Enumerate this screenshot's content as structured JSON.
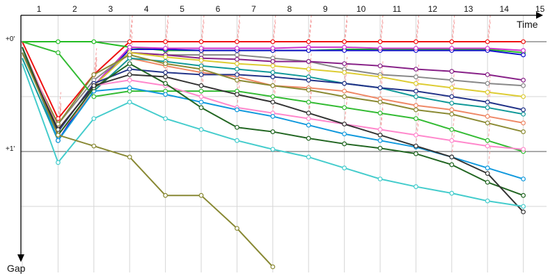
{
  "chart_data": {
    "type": "line",
    "xlabel": "Time",
    "ylabel": "Gap",
    "x_ticks": [
      "1",
      "2",
      "3",
      "4",
      "5",
      "6",
      "7",
      "8",
      "9",
      "10",
      "11",
      "12",
      "13",
      "14",
      "15"
    ],
    "y_ticks": [
      "+0'",
      "+1'"
    ],
    "ylim": [
      0,
      2.15
    ],
    "grid": true,
    "series": [
      {
        "color": "#ee1111",
        "values": [
          0.0,
          0.7,
          0.3,
          0.0,
          0.0,
          0.0,
          0.0,
          0.0,
          0.0,
          0.0,
          0.0,
          0.0,
          0.0,
          0.0,
          0.0
        ]
      },
      {
        "color": "#22bb22",
        "values": [
          0.0,
          0.0,
          0.0,
          0.05,
          0.08,
          0.08,
          0.08,
          0.08,
          0.08,
          0.07,
          0.07,
          0.07,
          0.07,
          0.07,
          0.1
        ]
      },
      {
        "color": "#1111cc",
        "values": [
          0.05,
          0.9,
          0.4,
          0.07,
          0.07,
          0.08,
          0.08,
          0.08,
          0.08,
          0.08,
          0.08,
          0.08,
          0.08,
          0.08,
          0.12
        ]
      },
      {
        "color": "#cc33cc",
        "values": [
          0.05,
          0.8,
          0.4,
          0.05,
          0.06,
          0.06,
          0.06,
          0.06,
          0.05,
          0.05,
          0.06,
          0.06,
          0.06,
          0.06,
          0.08
        ]
      },
      {
        "color": "#888888",
        "values": [
          0.1,
          0.75,
          0.35,
          0.1,
          0.12,
          0.12,
          0.12,
          0.15,
          0.18,
          0.25,
          0.3,
          0.32,
          0.35,
          0.38,
          0.4
        ]
      },
      {
        "color": "#882288",
        "values": [
          0.05,
          0.8,
          0.4,
          0.1,
          0.12,
          0.15,
          0.16,
          0.18,
          0.18,
          0.2,
          0.22,
          0.25,
          0.27,
          0.3,
          0.35
        ]
      },
      {
        "color": "#ee8866",
        "values": [
          0.05,
          0.85,
          0.45,
          0.15,
          0.22,
          0.28,
          0.32,
          0.4,
          0.42,
          0.45,
          0.52,
          0.58,
          0.62,
          0.68,
          0.74
        ]
      },
      {
        "color": "#ddcc33",
        "values": [
          0.1,
          0.8,
          0.4,
          0.1,
          0.14,
          0.17,
          0.2,
          0.22,
          0.25,
          0.28,
          0.32,
          0.38,
          0.42,
          0.46,
          0.5
        ]
      },
      {
        "color": "#119999",
        "values": [
          0.15,
          0.9,
          0.45,
          0.15,
          0.18,
          0.22,
          0.25,
          0.28,
          0.32,
          0.38,
          0.42,
          0.5,
          0.56,
          0.6,
          0.66
        ]
      },
      {
        "color": "#223388",
        "values": [
          0.1,
          0.82,
          0.38,
          0.25,
          0.28,
          0.3,
          0.3,
          0.32,
          0.35,
          0.38,
          0.42,
          0.45,
          0.5,
          0.55,
          0.62
        ]
      },
      {
        "color": "#8a8a33",
        "values": [
          0.1,
          0.75,
          0.3,
          0.12,
          0.2,
          0.25,
          0.35,
          0.4,
          0.44,
          0.5,
          0.55,
          0.62,
          0.66,
          0.74,
          0.82
        ]
      },
      {
        "color": "#33bb33",
        "values": [
          0.0,
          0.1,
          0.5,
          0.45,
          0.45,
          0.45,
          0.45,
          0.5,
          0.55,
          0.6,
          0.65,
          0.7,
          0.8,
          0.9,
          1.0
        ]
      },
      {
        "color": "#ff88cc",
        "values": [
          0.05,
          0.8,
          0.4,
          0.35,
          0.4,
          0.5,
          0.6,
          0.65,
          0.7,
          0.75,
          0.8,
          0.85,
          0.9,
          0.95,
          0.98
        ]
      },
      {
        "color": "#1199dd",
        "values": [
          0.05,
          0.9,
          0.45,
          0.42,
          0.48,
          0.55,
          0.62,
          0.68,
          0.76,
          0.84,
          0.9,
          0.96,
          1.05,
          1.15,
          1.25
        ]
      },
      {
        "color": "#226622",
        "values": [
          0.05,
          0.85,
          0.42,
          0.2,
          0.38,
          0.6,
          0.78,
          0.82,
          0.88,
          0.93,
          0.97,
          1.02,
          1.12,
          1.28,
          1.4
        ]
      },
      {
        "color": "#333333",
        "values": [
          0.1,
          0.8,
          0.4,
          0.3,
          0.32,
          0.4,
          0.48,
          0.55,
          0.65,
          0.75,
          0.85,
          0.95,
          1.05,
          1.2,
          1.55
        ]
      },
      {
        "color": "#44cccc",
        "values": [
          0.2,
          1.1,
          0.7,
          0.55,
          0.7,
          0.8,
          0.9,
          0.98,
          1.05,
          1.15,
          1.25,
          1.32,
          1.38,
          1.45,
          1.5
        ]
      },
      {
        "color": "#888833",
        "values": [
          0.1,
          0.85,
          0.95,
          1.05,
          1.4,
          1.4,
          1.7,
          2.05
        ]
      }
    ]
  }
}
